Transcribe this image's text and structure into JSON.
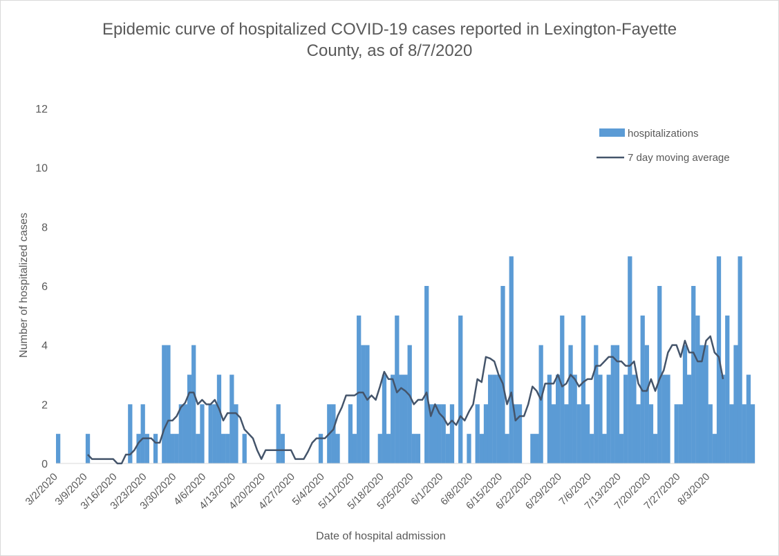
{
  "chart_data": {
    "type": "bar",
    "title_line1": "Epidemic curve of hospitalized COVID-19 cases reported in Lexington-Fayette",
    "title_line2": "County, as of 8/7/2020",
    "xlabel": "Date of hospital admission",
    "ylabel": "Number of hospitalized cases",
    "ylim": [
      0,
      12
    ],
    "yticks": [
      0,
      2,
      4,
      6,
      8,
      10,
      12
    ],
    "start_date": "3/2/2020",
    "end_date": "8/7/2020",
    "xtick_labels": [
      "3/2/2020",
      "3/9/2020",
      "3/16/2020",
      "3/23/2020",
      "3/30/2020",
      "4/6/2020",
      "4/13/2020",
      "4/20/2020",
      "4/27/2020",
      "5/4/2020",
      "5/11/2020",
      "5/18/2020",
      "5/25/2020",
      "6/1/2020",
      "6/8/2020",
      "6/15/2020",
      "6/22/2020",
      "6/29/2020",
      "7/6/2020",
      "7/13/2020",
      "7/20/2020",
      "7/27/2020",
      "8/3/2020"
    ],
    "grid": false,
    "legend_position": "top-right",
    "colors": {
      "bar": "#5b9bd5",
      "line": "#44546a",
      "axis": "#d9d9d9",
      "text": "#595959"
    },
    "series": [
      {
        "name": "hospitalizations",
        "type": "bar",
        "values": [
          1,
          0,
          0,
          0,
          0,
          0,
          0,
          1,
          0,
          0,
          0,
          0,
          0,
          0,
          0,
          0,
          0,
          2,
          0,
          1,
          2,
          1,
          0,
          1,
          0,
          4,
          4,
          1,
          1,
          2,
          2,
          3,
          4,
          1,
          2,
          0,
          2,
          2,
          3,
          1,
          1,
          3,
          2,
          0,
          1,
          0,
          0,
          0,
          0,
          0,
          0,
          0,
          2,
          1,
          0,
          0,
          0,
          0,
          0,
          0,
          0,
          0,
          1,
          0,
          2,
          2,
          1,
          0,
          0,
          2,
          1,
          5,
          4,
          4,
          0,
          0,
          1,
          3,
          1,
          3,
          5,
          3,
          3,
          4,
          1,
          1,
          0,
          6,
          2,
          2,
          2,
          2,
          1,
          2,
          0,
          5,
          0,
          1,
          0,
          2,
          1,
          2,
          3,
          3,
          3,
          6,
          1,
          7,
          2,
          2,
          0,
          0,
          1,
          1,
          4,
          0,
          3,
          2,
          3,
          5,
          2,
          4,
          3,
          2,
          5,
          2,
          1,
          4,
          3,
          1,
          3,
          4,
          4,
          1,
          3,
          7,
          3,
          2,
          5,
          4,
          2,
          1,
          6,
          3,
          3,
          0,
          2,
          2,
          4,
          3,
          6,
          5,
          4,
          4,
          2,
          1,
          7,
          3,
          5,
          2,
          4,
          7,
          2,
          3,
          2
        ]
      },
      {
        "name": "7 day moving average",
        "type": "line",
        "values": [
          null,
          null,
          null,
          null,
          null,
          null,
          null,
          0.3,
          0.15,
          0.15,
          0.15,
          0.15,
          0.15,
          0.15,
          0,
          0,
          0.3,
          0.3,
          0.45,
          0.7,
          0.85,
          0.85,
          0.85,
          0.7,
          0.7,
          1.15,
          1.45,
          1.45,
          1.6,
          1.9,
          2.05,
          2.4,
          2.4,
          2,
          2.15,
          2,
          2,
          2.15,
          1.85,
          1.45,
          1.7,
          1.7,
          1.7,
          1.55,
          1.15,
          1,
          0.85,
          0.45,
          0.15,
          0.45,
          0.45,
          0.45,
          0.45,
          0.45,
          0.45,
          0.45,
          0.15,
          0.15,
          0.15,
          0.4,
          0.7,
          0.85,
          0.85,
          0.85,
          1,
          1.15,
          1.6,
          1.9,
          2.3,
          2.3,
          2.3,
          2.4,
          2.4,
          2.15,
          2.3,
          2.15,
          2.6,
          3.1,
          2.85,
          2.85,
          2.4,
          2.55,
          2.45,
          2.3,
          2,
          2.15,
          2.15,
          2.4,
          1.6,
          2,
          1.7,
          1.55,
          1.3,
          1.45,
          1.3,
          1.6,
          1.45,
          1.75,
          2,
          2.85,
          2.75,
          3.6,
          3.55,
          3.45,
          3,
          2.7,
          2,
          2.4,
          1.45,
          1.6,
          1.6,
          2,
          2.6,
          2.45,
          2.15,
          2.7,
          2.7,
          2.7,
          3,
          2.6,
          2.7,
          3,
          2.85,
          2.6,
          2.75,
          2.85,
          2.85,
          3.3,
          3.3,
          3.45,
          3.6,
          3.6,
          3.45,
          3.45,
          3.3,
          3.3,
          3.45,
          2.7,
          2.45,
          2.45,
          2.85,
          2.45,
          2.85,
          3.15,
          3.75,
          4,
          4,
          3.6,
          4.15,
          3.75,
          3.75,
          3.45,
          3.45,
          4.15,
          4.3,
          3.75,
          3.6,
          2.85
        ]
      }
    ]
  }
}
